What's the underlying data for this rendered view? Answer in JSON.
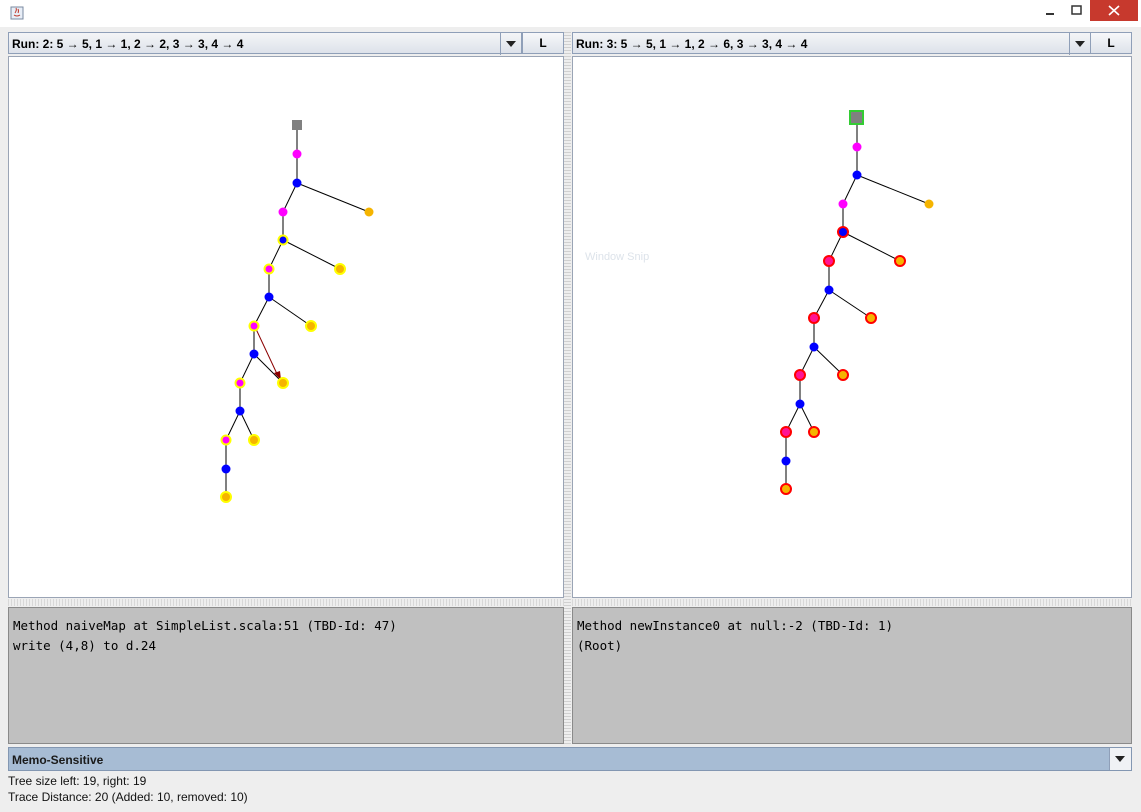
{
  "window": {
    "title": ""
  },
  "left": {
    "run_label": "Run: 2: 5 → 5, 1 → 1, 2 → 2, 3 → 3, 4 → 4",
    "button_label": "L",
    "info_lines": [
      "Method naiveMap at SimpleList.scala:51 (TBD-Id: 47)",
      "write (4,8) to d.24"
    ]
  },
  "right": {
    "run_label": "Run: 3: 5 → 5, 1 → 1, 2 → 6, 3 → 3, 4 → 4",
    "button_label": "L",
    "info_lines": [
      "Method newInstance0 at null:-2 (TBD-Id: 1)",
      "(Root)"
    ],
    "ghost_text": "Window Snip"
  },
  "mode": {
    "selected": "Memo-Sensitive"
  },
  "status": {
    "tree_size": "Tree size left: 19, right: 19",
    "trace_distance": "Trace Distance: 20 (Added: 10, removed: 10)"
  },
  "colors": {
    "root": "#808080",
    "magenta": "#ff00ff",
    "blue": "#0000ff",
    "orange": "#f5b400",
    "yellow_ring": "#ffff00",
    "red_ring": "#ff0000",
    "pink_fill": "#ff1493",
    "green_ring": "#33cc33",
    "arrow": "#8b0000"
  }
}
